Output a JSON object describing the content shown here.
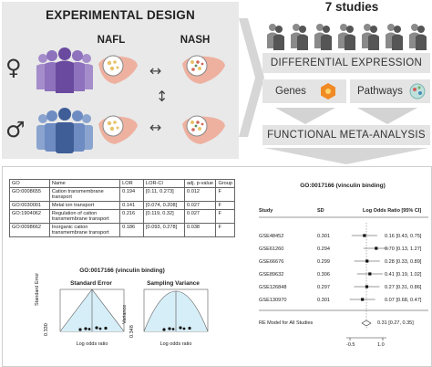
{
  "design": {
    "title": "EXPERIMENTAL DESIGN",
    "col_nafl": "NAFL",
    "col_nash": "NASH",
    "female_symbol": "♀",
    "male_symbol": "♂",
    "arrow_h": "↔",
    "arrow_v": "↕"
  },
  "flow": {
    "studies_title": "7 studies",
    "differential": "DIFFERENTIAL EXPRESSION",
    "genes": "Genes",
    "pathways": "Pathways",
    "functional": "FUNCTIONAL META-ANALYSIS"
  },
  "colors": {
    "female_people": "#7d5bb0",
    "male_people": "#4f6fae",
    "liver": "#e8a48d",
    "panel_bg": "#e9e9e9",
    "box_bg": "#e4e4e4",
    "flow_arrow": "#cfcfcf",
    "icon_person": "#444444"
  },
  "table": {
    "headers": [
      "GO",
      "Name",
      "LOR",
      "LOR-CI",
      "adj. p-value",
      "Group"
    ],
    "rows": [
      [
        "GO:0008655",
        "Cation transmembrane transport",
        "0.194",
        "[0.11, 0.273]",
        "0.012",
        "F"
      ],
      [
        "GO:0030001",
        "Metal ion transport",
        "0.141",
        "[0.074, 0.208]",
        "0.027",
        "F"
      ],
      [
        "GO:1904062",
        "Regulation of cation transmembrane transport",
        "0.216",
        "[0.119, 0.32]",
        "0.027",
        "F"
      ],
      [
        "GO:0098662",
        "Inorganic cation transmembrane transport",
        "0.186",
        "[0.093, 0.278]",
        "0.038",
        "F"
      ]
    ]
  },
  "funnel": {
    "title": "GO:0017166 (vinculin binding)",
    "left_title": "Standard Error",
    "right_title": "Sampling Variance",
    "left_ylabel": "Standard Error",
    "right_ylabel": "Variance",
    "xlabel": "Log odds ratio",
    "left_tick": "0.330",
    "right_tick": "0.348"
  },
  "forest": {
    "title": "GO:0017166 (vinculin binding)",
    "col_study": "Study",
    "col_sd": "SD",
    "col_lor": "Log Odds Ratio [95% CI]",
    "model_label": "RE Model for All Studies",
    "model_ci": "0.31 [0.27, 0.35]",
    "rows": [
      {
        "study": "GSE48452",
        "sd": "0.301",
        "ci": "0.16 [0.43, 0.75]"
      },
      {
        "study": "GSE61260",
        "sd": "0.294",
        "ci": "0.70 [0.13, 1.27]"
      },
      {
        "study": "GSE66676",
        "sd": "0.299",
        "ci": "0.28 [0.33, 0.89]"
      },
      {
        "study": "GSE89632",
        "sd": "0.306",
        "ci": "0.41 [0.19, 1.02]"
      },
      {
        "study": "GSE126848",
        "sd": "0.297",
        "ci": "0.27 [0.31, 0.86]"
      },
      {
        "study": "GSE130970",
        "sd": "0.301",
        "ci": "0.07 [0.68, 0.47]"
      }
    ],
    "x_ticks": [
      "-0.5",
      "1.0"
    ]
  }
}
